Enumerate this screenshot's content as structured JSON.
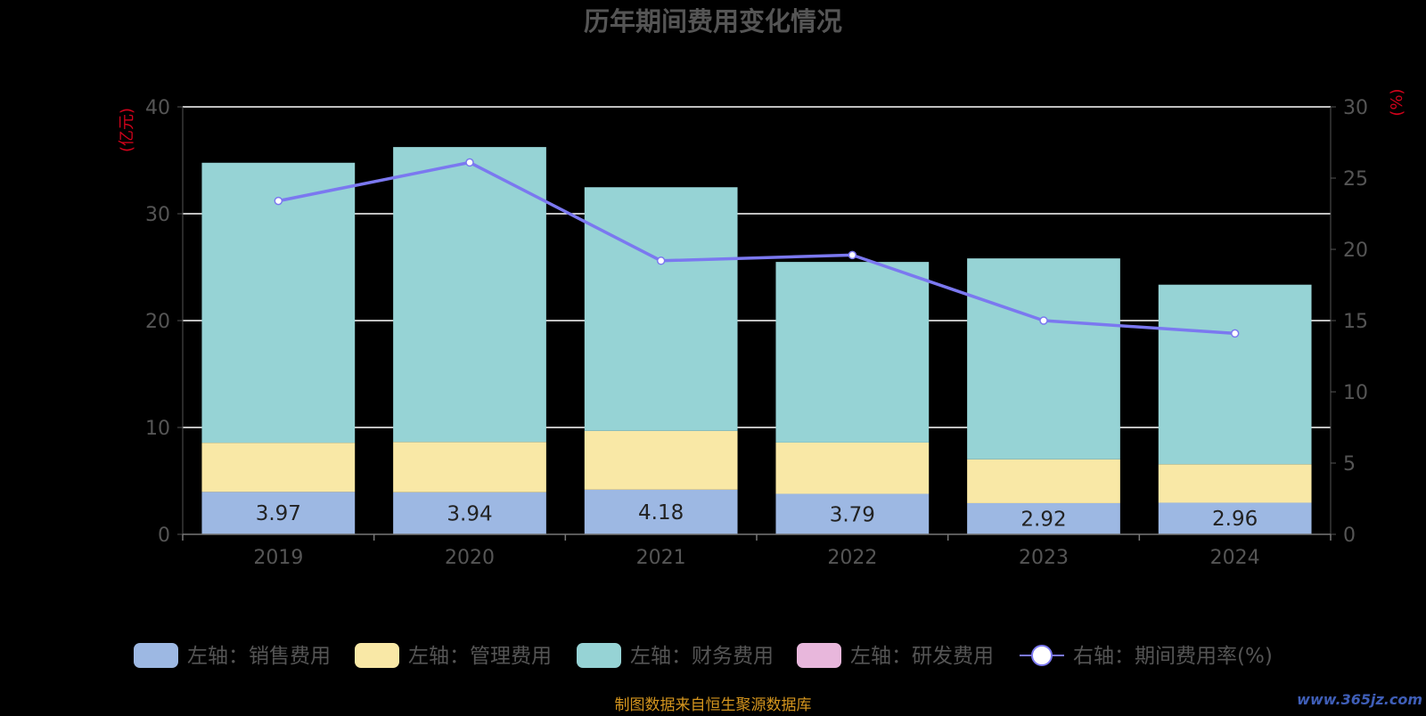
{
  "chart_data": {
    "type": "bar",
    "stacked": true,
    "title": "历年期间费用变化情况",
    "categories": [
      "2019",
      "2020",
      "2021",
      "2022",
      "2023",
      "2024"
    ],
    "left_axis": {
      "label": "(亿元)",
      "ylim": [
        0,
        40
      ],
      "ticks": [
        0,
        10,
        20,
        30,
        40
      ]
    },
    "right_axis": {
      "label": "(%)",
      "ylim": [
        0,
        30
      ],
      "ticks": [
        0,
        5,
        10,
        15,
        20,
        25,
        30
      ]
    },
    "series": [
      {
        "name": "左轴：销售费用",
        "type": "bar",
        "axis": "left",
        "color": "#9db8e3",
        "values": [
          3.97,
          3.94,
          4.18,
          3.79,
          2.92,
          2.96
        ],
        "show_labels": true
      },
      {
        "name": "左轴：管理费用",
        "type": "bar",
        "axis": "left",
        "color": "#f9e8a6",
        "values": [
          4.6,
          4.7,
          5.5,
          4.8,
          4.1,
          3.6
        ]
      },
      {
        "name": "左轴：财务费用",
        "type": "bar",
        "axis": "left",
        "color": "#96d3d5",
        "values": [
          26.2,
          27.6,
          22.8,
          16.9,
          18.8,
          16.8
        ]
      },
      {
        "name": "左轴：研发费用",
        "type": "bar",
        "axis": "left",
        "color": "#e8b7dc",
        "values": [
          0,
          0,
          0,
          0,
          0,
          0
        ]
      },
      {
        "name": "右轴：期间费用率(%)",
        "type": "line",
        "axis": "right",
        "color": "#7b78f0",
        "values": [
          23.4,
          26.1,
          19.2,
          19.6,
          15.0,
          14.1
        ]
      }
    ],
    "grid": true,
    "legend_position": "bottom"
  },
  "footer": {
    "source": "制图数据来自恒生聚源数据库",
    "watermark": "www.365jz.com"
  },
  "colors": {
    "background": "#000000",
    "title": "#555555",
    "axis_unit": "#d0021b",
    "source": "#d4951e",
    "watermark": "#4a6fd8"
  }
}
